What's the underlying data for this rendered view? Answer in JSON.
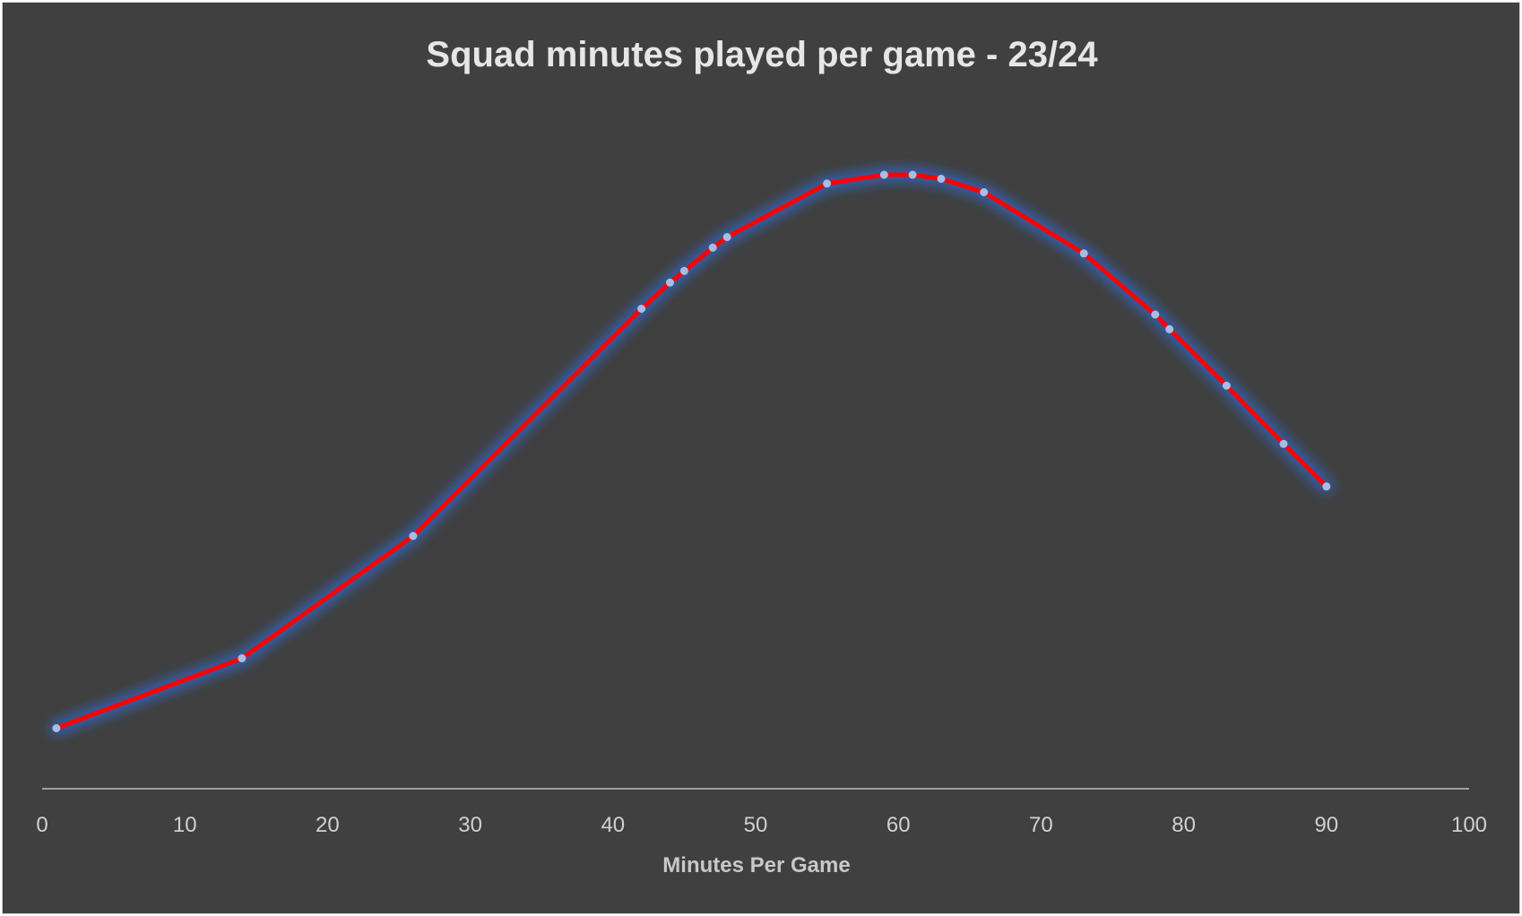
{
  "chart_data": {
    "type": "line",
    "title": "Squad minutes played per game - 23/24",
    "xlabel": "Minutes Per Game",
    "ylabel": "",
    "xlim": [
      0,
      100
    ],
    "xticks": [
      "0",
      "10",
      "20",
      "30",
      "40",
      "50",
      "60",
      "70",
      "80",
      "90",
      "100"
    ],
    "y_axis_visible": false,
    "grid": false,
    "legend": "none",
    "colors": {
      "line": "#ff0000",
      "marker": "#a6bde6",
      "glow": "#2e6bd6",
      "axis": "#bfbfbf"
    },
    "series": [
      {
        "x": [
          1,
          14,
          26,
          42,
          44,
          45,
          47,
          48,
          55,
          59,
          61,
          63,
          66,
          73,
          78,
          79,
          83,
          87,
          90
        ],
        "y": [
          0.05,
          0.17,
          0.38,
          0.77,
          0.815,
          0.835,
          0.875,
          0.893,
          0.985,
          1.0,
          1.0,
          0.993,
          0.97,
          0.865,
          0.76,
          0.735,
          0.638,
          0.538,
          0.465
        ]
      }
    ]
  }
}
